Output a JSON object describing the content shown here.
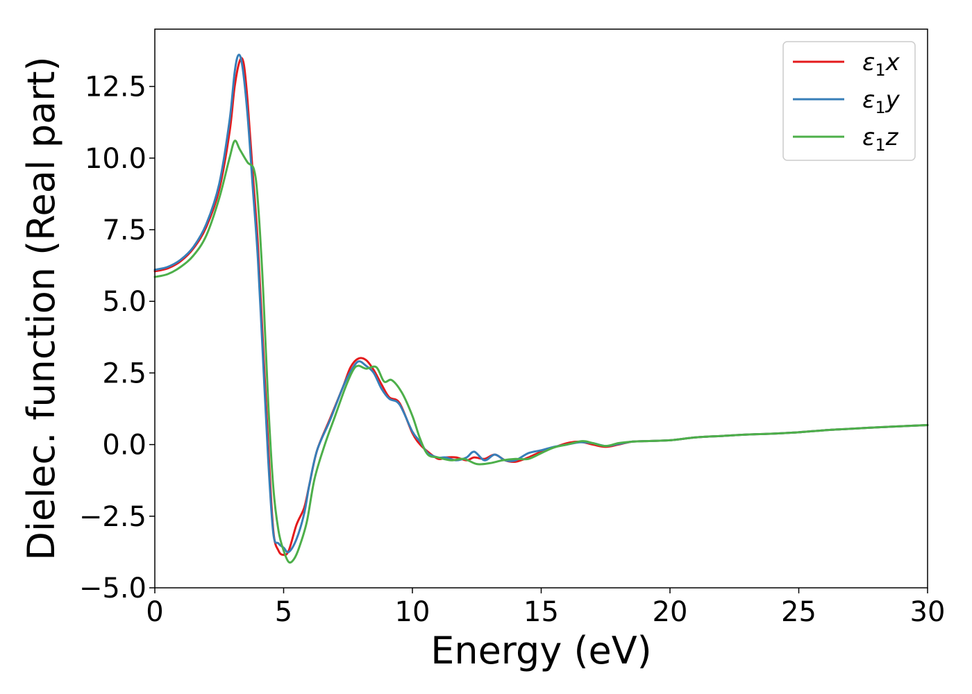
{
  "chart_data": {
    "type": "line",
    "title": "",
    "xlabel": "Energy (eV)",
    "ylabel": "Dielec. function (Real part)",
    "xlim": [
      0,
      30
    ],
    "ylim": [
      -5.0,
      14.5
    ],
    "xticks": [
      0,
      5,
      10,
      15,
      20,
      25,
      30
    ],
    "xtick_labels": [
      "0",
      "5",
      "10",
      "15",
      "20",
      "25",
      "30"
    ],
    "yticks": [
      -5.0,
      -2.5,
      0.0,
      2.5,
      5.0,
      7.5,
      10.0,
      12.5
    ],
    "ytick_labels": [
      "−5.0",
      "−2.5",
      "0.0",
      "2.5",
      "5.0",
      "7.5",
      "10.0",
      "12.5"
    ],
    "grid": false,
    "legend_position": "top-right",
    "legend": [
      {
        "base": "ε",
        "sub": "1",
        "suffix": "x",
        "color": "#e41a1c"
      },
      {
        "base": "ε",
        "sub": "1",
        "suffix": "y",
        "color": "#377eb8"
      },
      {
        "base": "ε",
        "sub": "1",
        "suffix": "z",
        "color": "#4daf4a"
      }
    ],
    "series": [
      {
        "name": "ε1x",
        "color": "#e41a1c",
        "points": [
          [
            0,
            6.05
          ],
          [
            0.5,
            6.15
          ],
          [
            1.0,
            6.4
          ],
          [
            1.5,
            6.85
          ],
          [
            2.0,
            7.6
          ],
          [
            2.5,
            8.9
          ],
          [
            2.9,
            10.9
          ],
          [
            3.1,
            12.5
          ],
          [
            3.3,
            13.4
          ],
          [
            3.45,
            13.3
          ],
          [
            3.6,
            12.0
          ],
          [
            3.8,
            9.5
          ],
          [
            4.0,
            7.0
          ],
          [
            4.2,
            3.5
          ],
          [
            4.4,
            0.0
          ],
          [
            4.6,
            -3.0
          ],
          [
            4.8,
            -3.7
          ],
          [
            5.0,
            -3.85
          ],
          [
            5.2,
            -3.7
          ],
          [
            5.5,
            -2.8
          ],
          [
            5.8,
            -2.2
          ],
          [
            6.0,
            -1.4
          ],
          [
            6.3,
            -0.2
          ],
          [
            6.8,
            0.9
          ],
          [
            7.3,
            2.0
          ],
          [
            7.6,
            2.7
          ],
          [
            7.9,
            3.0
          ],
          [
            8.2,
            2.95
          ],
          [
            8.5,
            2.6
          ],
          [
            8.8,
            2.1
          ],
          [
            9.1,
            1.65
          ],
          [
            9.5,
            1.45
          ],
          [
            10.0,
            0.4
          ],
          [
            10.3,
            0.0
          ],
          [
            10.6,
            -0.25
          ],
          [
            11.0,
            -0.5
          ],
          [
            11.3,
            -0.45
          ],
          [
            11.7,
            -0.45
          ],
          [
            12.1,
            -0.55
          ],
          [
            12.4,
            -0.45
          ],
          [
            12.8,
            -0.5
          ],
          [
            13.2,
            -0.35
          ],
          [
            13.6,
            -0.55
          ],
          [
            14.0,
            -0.6
          ],
          [
            14.5,
            -0.45
          ],
          [
            15.0,
            -0.25
          ],
          [
            15.5,
            -0.1
          ],
          [
            16.0,
            0.05
          ],
          [
            16.5,
            0.1
          ],
          [
            17.0,
            0.0
          ],
          [
            17.5,
            -0.08
          ],
          [
            18.0,
            0.0
          ],
          [
            18.5,
            0.1
          ],
          [
            19.0,
            0.12
          ],
          [
            20.0,
            0.15
          ],
          [
            21.0,
            0.25
          ],
          [
            22.0,
            0.3
          ],
          [
            23.0,
            0.35
          ],
          [
            24.0,
            0.38
          ],
          [
            25.0,
            0.43
          ],
          [
            26.0,
            0.5
          ],
          [
            27.0,
            0.55
          ],
          [
            28.0,
            0.6
          ],
          [
            29.0,
            0.64
          ],
          [
            30.0,
            0.68
          ]
        ]
      },
      {
        "name": "ε1y",
        "color": "#377eb8",
        "points": [
          [
            0,
            6.1
          ],
          [
            0.5,
            6.2
          ],
          [
            1.0,
            6.45
          ],
          [
            1.5,
            6.9
          ],
          [
            2.0,
            7.7
          ],
          [
            2.5,
            9.1
          ],
          [
            2.9,
            11.3
          ],
          [
            3.1,
            13.0
          ],
          [
            3.25,
            13.6
          ],
          [
            3.4,
            13.2
          ],
          [
            3.6,
            11.5
          ],
          [
            3.8,
            9.0
          ],
          [
            4.0,
            6.5
          ],
          [
            4.2,
            3.0
          ],
          [
            4.4,
            -0.5
          ],
          [
            4.6,
            -3.1
          ],
          [
            4.8,
            -3.45
          ],
          [
            5.0,
            -3.6
          ],
          [
            5.2,
            -3.75
          ],
          [
            5.5,
            -3.3
          ],
          [
            5.8,
            -2.4
          ],
          [
            6.0,
            -1.4
          ],
          [
            6.3,
            -0.2
          ],
          [
            6.8,
            0.85
          ],
          [
            7.3,
            2.0
          ],
          [
            7.6,
            2.55
          ],
          [
            7.9,
            2.9
          ],
          [
            8.2,
            2.75
          ],
          [
            8.5,
            2.5
          ],
          [
            8.8,
            1.95
          ],
          [
            9.1,
            1.6
          ],
          [
            9.5,
            1.4
          ],
          [
            10.0,
            0.45
          ],
          [
            10.3,
            0.1
          ],
          [
            10.6,
            -0.3
          ],
          [
            11.0,
            -0.45
          ],
          [
            11.3,
            -0.45
          ],
          [
            11.7,
            -0.55
          ],
          [
            12.1,
            -0.45
          ],
          [
            12.4,
            -0.25
          ],
          [
            12.8,
            -0.55
          ],
          [
            13.2,
            -0.35
          ],
          [
            13.6,
            -0.55
          ],
          [
            14.0,
            -0.55
          ],
          [
            14.5,
            -0.3
          ],
          [
            15.0,
            -0.2
          ],
          [
            15.5,
            -0.08
          ],
          [
            16.0,
            0.0
          ],
          [
            16.5,
            0.08
          ],
          [
            17.0,
            0.05
          ],
          [
            17.5,
            -0.05
          ],
          [
            18.0,
            0.02
          ],
          [
            18.5,
            0.1
          ],
          [
            19.0,
            0.12
          ],
          [
            20.0,
            0.15
          ],
          [
            21.0,
            0.25
          ],
          [
            22.0,
            0.3
          ],
          [
            23.0,
            0.35
          ],
          [
            24.0,
            0.38
          ],
          [
            25.0,
            0.43
          ],
          [
            26.0,
            0.5
          ],
          [
            27.0,
            0.55
          ],
          [
            28.0,
            0.6
          ],
          [
            29.0,
            0.64
          ],
          [
            30.0,
            0.68
          ]
        ]
      },
      {
        "name": "ε1z",
        "color": "#4daf4a",
        "points": [
          [
            0,
            5.85
          ],
          [
            0.5,
            5.95
          ],
          [
            1.0,
            6.2
          ],
          [
            1.5,
            6.6
          ],
          [
            2.0,
            7.3
          ],
          [
            2.5,
            8.6
          ],
          [
            2.9,
            10.0
          ],
          [
            3.1,
            10.6
          ],
          [
            3.3,
            10.3
          ],
          [
            3.6,
            9.85
          ],
          [
            3.85,
            9.6
          ],
          [
            4.0,
            8.5
          ],
          [
            4.2,
            5.5
          ],
          [
            4.4,
            1.5
          ],
          [
            4.6,
            -1.5
          ],
          [
            4.8,
            -3.0
          ],
          [
            5.0,
            -3.7
          ],
          [
            5.2,
            -4.1
          ],
          [
            5.4,
            -4.0
          ],
          [
            5.6,
            -3.6
          ],
          [
            5.9,
            -2.7
          ],
          [
            6.2,
            -1.2
          ],
          [
            6.6,
            0.0
          ],
          [
            7.0,
            1.0
          ],
          [
            7.4,
            2.0
          ],
          [
            7.7,
            2.6
          ],
          [
            7.9,
            2.75
          ],
          [
            8.2,
            2.65
          ],
          [
            8.6,
            2.7
          ],
          [
            8.9,
            2.2
          ],
          [
            9.2,
            2.25
          ],
          [
            9.6,
            1.8
          ],
          [
            10.0,
            1.0
          ],
          [
            10.3,
            0.2
          ],
          [
            10.6,
            -0.35
          ],
          [
            11.0,
            -0.45
          ],
          [
            11.5,
            -0.55
          ],
          [
            12.0,
            -0.5
          ],
          [
            12.5,
            -0.68
          ],
          [
            13.0,
            -0.65
          ],
          [
            13.5,
            -0.55
          ],
          [
            14.0,
            -0.5
          ],
          [
            14.5,
            -0.5
          ],
          [
            15.0,
            -0.3
          ],
          [
            15.5,
            -0.1
          ],
          [
            16.0,
            0.0
          ],
          [
            16.6,
            0.12
          ],
          [
            17.0,
            0.05
          ],
          [
            17.5,
            -0.05
          ],
          [
            18.0,
            0.05
          ],
          [
            18.5,
            0.1
          ],
          [
            19.0,
            0.12
          ],
          [
            20.0,
            0.15
          ],
          [
            21.0,
            0.25
          ],
          [
            22.0,
            0.3
          ],
          [
            23.0,
            0.35
          ],
          [
            24.0,
            0.38
          ],
          [
            25.0,
            0.43
          ],
          [
            26.0,
            0.5
          ],
          [
            27.0,
            0.55
          ],
          [
            28.0,
            0.6
          ],
          [
            29.0,
            0.64
          ],
          [
            30.0,
            0.68
          ]
        ]
      }
    ]
  }
}
